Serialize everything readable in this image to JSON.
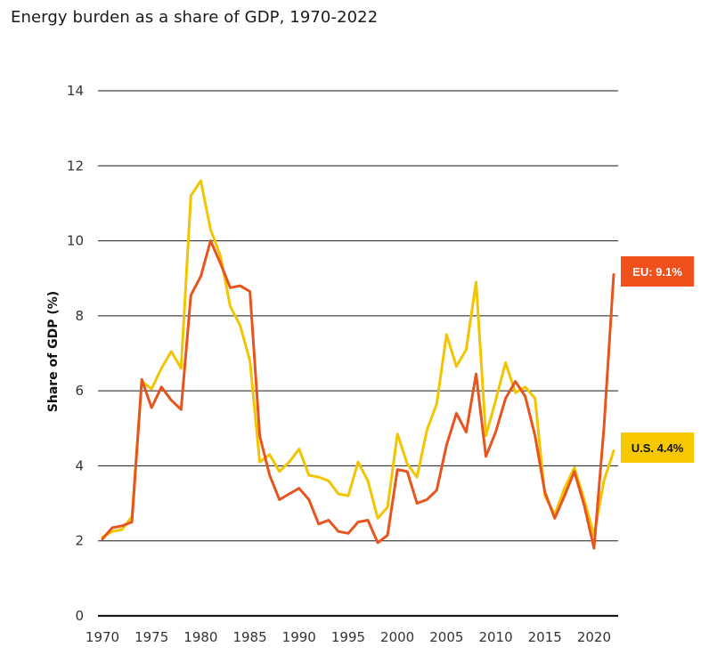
{
  "page": {
    "title": "Energy burden as a share of GDP, 1970-2022"
  },
  "chart_data": {
    "type": "line",
    "title": "Energy burden as a share of GDP, 1970-2022",
    "ylabel": "Share of GDP (%)",
    "xlabel": "",
    "xlim": [
      1970,
      2022
    ],
    "ylim": [
      0,
      14
    ],
    "yticks": [
      0,
      2,
      4,
      6,
      8,
      10,
      12,
      14
    ],
    "xticks": [
      1970,
      1975,
      1980,
      1985,
      1990,
      1995,
      2000,
      2005,
      2010,
      2015,
      2020
    ],
    "grid": "horizontal",
    "x": [
      1970,
      1971,
      1972,
      1973,
      1974,
      1975,
      1976,
      1977,
      1978,
      1979,
      1980,
      1981,
      1982,
      1983,
      1984,
      1985,
      1986,
      1987,
      1988,
      1989,
      1990,
      1991,
      1992,
      1993,
      1994,
      1995,
      1996,
      1997,
      1998,
      1999,
      2000,
      2001,
      2002,
      2003,
      2004,
      2005,
      2006,
      2007,
      2008,
      2009,
      2010,
      2011,
      2012,
      2013,
      2014,
      2015,
      2016,
      2017,
      2018,
      2019,
      2020,
      2021,
      2022
    ],
    "series": [
      {
        "name": "EU",
        "color": "#e8541d",
        "end_label": "EU: 9.1%",
        "values": [
          2.05,
          2.35,
          2.4,
          2.5,
          6.3,
          5.55,
          6.1,
          5.75,
          5.5,
          8.55,
          9.05,
          10.0,
          9.4,
          8.75,
          8.8,
          8.65,
          4.8,
          3.75,
          3.1,
          3.25,
          3.4,
          3.1,
          2.45,
          2.55,
          2.25,
          2.2,
          2.5,
          2.55,
          1.95,
          2.15,
          3.9,
          3.85,
          3.0,
          3.1,
          3.35,
          4.55,
          5.4,
          4.9,
          6.45,
          4.25,
          4.9,
          5.8,
          6.25,
          5.85,
          4.8,
          3.3,
          2.6,
          3.2,
          3.85,
          2.95,
          1.8,
          5.0,
          9.1
        ]
      },
      {
        "name": "U.S.",
        "color": "#f2c500",
        "end_label": "U.S. 4.4%",
        "values": [
          2.1,
          2.25,
          2.3,
          2.65,
          6.25,
          6.05,
          6.6,
          7.05,
          6.6,
          11.2,
          11.6,
          10.3,
          9.6,
          8.25,
          7.75,
          6.8,
          4.1,
          4.3,
          3.85,
          4.1,
          4.45,
          3.75,
          3.7,
          3.6,
          3.25,
          3.2,
          4.1,
          3.6,
          2.6,
          2.9,
          4.85,
          4.05,
          3.7,
          4.95,
          5.65,
          7.5,
          6.65,
          7.1,
          8.9,
          4.8,
          5.75,
          6.75,
          5.95,
          6.1,
          5.8,
          3.2,
          2.7,
          3.4,
          3.95,
          3.1,
          2.15,
          3.6,
          4.4
        ]
      }
    ]
  }
}
